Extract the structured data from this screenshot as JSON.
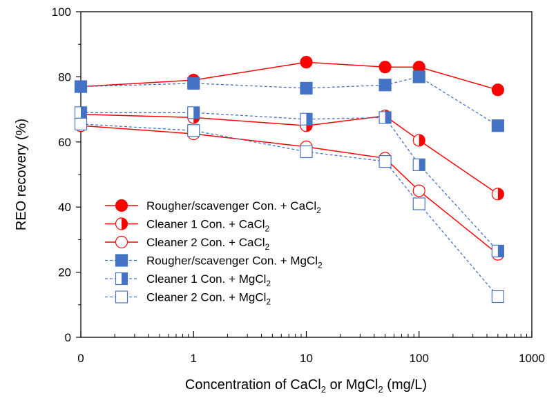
{
  "chart_data": {
    "type": "line",
    "x_scale": "log",
    "x_zero_plotted_at_tick": "0",
    "xlim": [
      0.1,
      1000
    ],
    "ylim": [
      0,
      100
    ],
    "x_ticks": [
      "0",
      "1",
      "10",
      "100",
      "1000"
    ],
    "y_ticks": [
      "0",
      "20",
      "40",
      "60",
      "80",
      "100"
    ],
    "xlabel": {
      "main": "Concentration of CaCl",
      "sub1": "2",
      "mid": " or MgCl",
      "sub2": "2",
      "end": " (mg/L)"
    },
    "ylabel": "REO recovery (%)",
    "grid": false,
    "legend_position": "bottom-left",
    "x": [
      0,
      1,
      10,
      50,
      100,
      500
    ],
    "series": [
      {
        "name": "Rougher/scavenger Con. + CaCl",
        "name_sub": "2",
        "color": "#ff0000",
        "dash": "solid",
        "marker": "circle",
        "fill": "full",
        "values": [
          77,
          79,
          84.5,
          83,
          83,
          76
        ]
      },
      {
        "name": "Cleaner 1 Con. + CaCl",
        "name_sub": "2",
        "color": "#ff0000",
        "dash": "solid",
        "marker": "circle",
        "fill": "half",
        "values": [
          68.5,
          67.5,
          65,
          68,
          60.5,
          44
        ]
      },
      {
        "name": "Cleaner 2 Con. + CaCl",
        "name_sub": "2",
        "color": "#ff0000",
        "dash": "solid",
        "marker": "circle",
        "fill": "none",
        "values": [
          65,
          62.5,
          58.5,
          55,
          45,
          25.5
        ]
      },
      {
        "name": "Rougher/scavenger Con. + MgCl",
        "name_sub": "2",
        "color": "#4472c4",
        "dash": "dashed",
        "marker": "square",
        "fill": "full",
        "values": [
          77,
          78,
          76.5,
          77.5,
          80,
          65
        ]
      },
      {
        "name": "Cleaner 1 Con. + MgCl",
        "name_sub": "2",
        "color": "#4472c4",
        "dash": "dashed",
        "marker": "square",
        "fill": "half",
        "values": [
          69,
          69,
          67,
          67.5,
          53,
          26.5
        ]
      },
      {
        "name": "Cleaner 2 Con. + MgCl",
        "name_sub": "2",
        "color": "#4472c4",
        "dash": "dashed",
        "marker": "square",
        "fill": "none",
        "values": [
          65.5,
          63.5,
          57,
          54,
          41,
          12.5
        ]
      }
    ]
  }
}
